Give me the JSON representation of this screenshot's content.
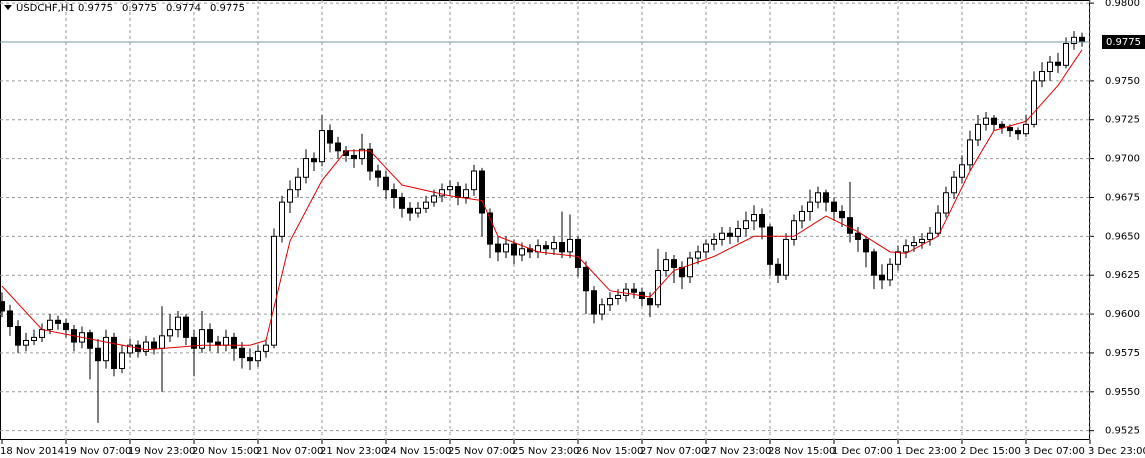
{
  "chart_data": {
    "type": "candlestick",
    "symbol": "USDCHF,H1",
    "header_values": [
      "0.9775",
      "0.9775",
      "0.9774",
      "0.9775"
    ],
    "bid": {
      "value": 0.9775,
      "label": "0.9775"
    },
    "up_color": "#ffffff",
    "down_color": "#000000",
    "ma_color": "#e00000",
    "bid_line_color": "#7a98a8",
    "grid": true,
    "xlim": [
      -0.25,
      136
    ],
    "ylim": [
      0.9519,
      0.9802
    ],
    "yticks": [
      {
        "value": 0.98,
        "label": "0.9800"
      },
      {
        "value": 0.975,
        "label": "0.9750"
      },
      {
        "value": 0.9725,
        "label": "0.9725"
      },
      {
        "value": 0.97,
        "label": "0.9700"
      },
      {
        "value": 0.9675,
        "label": "0.9675"
      },
      {
        "value": 0.965,
        "label": "0.9650"
      },
      {
        "value": 0.9625,
        "label": "0.9625"
      },
      {
        "value": 0.96,
        "label": "0.9600"
      },
      {
        "value": 0.9575,
        "label": "0.9575"
      },
      {
        "value": 0.955,
        "label": "0.9550"
      },
      {
        "value": 0.9525,
        "label": "0.9525"
      }
    ],
    "xticks": [
      {
        "value": 0,
        "label": "18 Nov 2014"
      },
      {
        "value": 8,
        "label": "19 Nov 07:00"
      },
      {
        "value": 16,
        "label": "19 Nov 23:00"
      },
      {
        "value": 24,
        "label": "20 Nov 15:00"
      },
      {
        "value": 32,
        "label": "21 Nov 07:00"
      },
      {
        "value": 40,
        "label": "21 Nov 23:00"
      },
      {
        "value": 48,
        "label": "24 Nov 15:00"
      },
      {
        "value": 56,
        "label": "25 Nov 07:00"
      },
      {
        "value": 64,
        "label": "25 Nov 23:00"
      },
      {
        "value": 72,
        "label": "26 Nov 15:00"
      },
      {
        "value": 80,
        "label": "27 Nov 07:00"
      },
      {
        "value": 88,
        "label": "27 Nov 23:00"
      },
      {
        "value": 96,
        "label": "28 Nov 15:00"
      },
      {
        "value": 104,
        "label": "1 Dec 07:00"
      },
      {
        "value": 112,
        "label": "1 Dec 23:00"
      },
      {
        "value": 120,
        "label": "2 Dec 15:00"
      },
      {
        "value": 128,
        "label": "3 Dec 07:00"
      },
      {
        "value": 136,
        "label": "3 Dec 23:00"
      }
    ],
    "candles": [
      [
        0.9608,
        0.9614,
        0.9598,
        0.9602
      ],
      [
        0.9602,
        0.9606,
        0.9586,
        0.9592
      ],
      [
        0.9592,
        0.9596,
        0.9575,
        0.958
      ],
      [
        0.958,
        0.9588,
        0.9576,
        0.9583
      ],
      [
        0.9583,
        0.959,
        0.958,
        0.9585
      ],
      [
        0.9585,
        0.9594,
        0.9582,
        0.959
      ],
      [
        0.959,
        0.96,
        0.9587,
        0.9596
      ],
      [
        0.9596,
        0.9599,
        0.959,
        0.9594
      ],
      [
        0.9594,
        0.9597,
        0.9585,
        0.959
      ],
      [
        0.959,
        0.9593,
        0.9576,
        0.9582
      ],
      [
        0.9582,
        0.9592,
        0.9578,
        0.9588
      ],
      [
        0.9588,
        0.959,
        0.9558,
        0.9578
      ],
      [
        0.9578,
        0.9584,
        0.953,
        0.957
      ],
      [
        0.957,
        0.959,
        0.9565,
        0.9585
      ],
      [
        0.9585,
        0.9588,
        0.956,
        0.9565
      ],
      [
        0.9565,
        0.958,
        0.9562,
        0.9575
      ],
      [
        0.9575,
        0.9584,
        0.9572,
        0.958
      ],
      [
        0.958,
        0.9583,
        0.9572,
        0.9576
      ],
      [
        0.9576,
        0.9586,
        0.9573,
        0.9582
      ],
      [
        0.9582,
        0.9585,
        0.9574,
        0.9578
      ],
      [
        0.9578,
        0.9605,
        0.955,
        0.9586
      ],
      [
        0.9586,
        0.96,
        0.9582,
        0.959
      ],
      [
        0.959,
        0.9602,
        0.9585,
        0.9598
      ],
      [
        0.9598,
        0.96,
        0.958,
        0.9585
      ],
      [
        0.9585,
        0.959,
        0.956,
        0.9578
      ],
      [
        0.9578,
        0.9602,
        0.9575,
        0.959
      ],
      [
        0.959,
        0.9594,
        0.9576,
        0.9582
      ],
      [
        0.9582,
        0.9586,
        0.9575,
        0.958
      ],
      [
        0.958,
        0.959,
        0.9576,
        0.9585
      ],
      [
        0.9585,
        0.9588,
        0.957,
        0.9578
      ],
      [
        0.9578,
        0.9582,
        0.9565,
        0.9572
      ],
      [
        0.9572,
        0.9578,
        0.9564,
        0.957
      ],
      [
        0.957,
        0.958,
        0.9566,
        0.9576
      ],
      [
        0.9576,
        0.9584,
        0.9572,
        0.958
      ],
      [
        0.958,
        0.9655,
        0.9578,
        0.965
      ],
      [
        0.965,
        0.9676,
        0.9646,
        0.9672
      ],
      [
        0.9672,
        0.9686,
        0.9665,
        0.968
      ],
      [
        0.968,
        0.9694,
        0.9675,
        0.9688
      ],
      [
        0.9688,
        0.9706,
        0.9684,
        0.97
      ],
      [
        0.97,
        0.9704,
        0.9692,
        0.9698
      ],
      [
        0.9698,
        0.9728,
        0.9695,
        0.9718
      ],
      [
        0.9718,
        0.9722,
        0.9704,
        0.971
      ],
      [
        0.971,
        0.9714,
        0.97,
        0.9705
      ],
      [
        0.9705,
        0.9708,
        0.9698,
        0.9702
      ],
      [
        0.9702,
        0.9706,
        0.9694,
        0.97
      ],
      [
        0.97,
        0.9716,
        0.9696,
        0.9706
      ],
      [
        0.9706,
        0.971,
        0.9686,
        0.9692
      ],
      [
        0.9692,
        0.9696,
        0.9682,
        0.9688
      ],
      [
        0.9688,
        0.9692,
        0.9674,
        0.968
      ],
      [
        0.968,
        0.9684,
        0.9668,
        0.9675
      ],
      [
        0.9675,
        0.9678,
        0.9662,
        0.9668
      ],
      [
        0.9668,
        0.9672,
        0.966,
        0.9665
      ],
      [
        0.9665,
        0.9672,
        0.9662,
        0.9668
      ],
      [
        0.9668,
        0.9676,
        0.9665,
        0.9672
      ],
      [
        0.9672,
        0.968,
        0.9669,
        0.9676
      ],
      [
        0.9676,
        0.9684,
        0.9672,
        0.968
      ],
      [
        0.968,
        0.9686,
        0.9676,
        0.9682
      ],
      [
        0.9682,
        0.9685,
        0.967,
        0.9675
      ],
      [
        0.9675,
        0.9684,
        0.9671,
        0.968
      ],
      [
        0.968,
        0.9696,
        0.9676,
        0.9692
      ],
      [
        0.9692,
        0.9694,
        0.965,
        0.9665
      ],
      [
        0.9665,
        0.9668,
        0.9636,
        0.9645
      ],
      [
        0.9645,
        0.965,
        0.9634,
        0.964
      ],
      [
        0.964,
        0.965,
        0.9636,
        0.9645
      ],
      [
        0.9645,
        0.9648,
        0.9632,
        0.9638
      ],
      [
        0.9638,
        0.9646,
        0.9634,
        0.9642
      ],
      [
        0.9642,
        0.9645,
        0.9636,
        0.964
      ],
      [
        0.964,
        0.9648,
        0.9636,
        0.9644
      ],
      [
        0.9644,
        0.9647,
        0.9638,
        0.9642
      ],
      [
        0.9642,
        0.965,
        0.9638,
        0.9646
      ],
      [
        0.9646,
        0.9666,
        0.9636,
        0.964
      ],
      [
        0.964,
        0.9664,
        0.9636,
        0.9648
      ],
      [
        0.9648,
        0.965,
        0.9624,
        0.963
      ],
      [
        0.963,
        0.9634,
        0.96,
        0.9615
      ],
      [
        0.9615,
        0.9618,
        0.9594,
        0.96
      ],
      [
        0.96,
        0.961,
        0.9596,
        0.9606
      ],
      [
        0.9606,
        0.9614,
        0.9602,
        0.961
      ],
      [
        0.961,
        0.9616,
        0.9606,
        0.9612
      ],
      [
        0.9612,
        0.962,
        0.9608,
        0.9616
      ],
      [
        0.9616,
        0.962,
        0.961,
        0.9614
      ],
      [
        0.9614,
        0.9617,
        0.9605,
        0.961
      ],
      [
        0.961,
        0.9614,
        0.9598,
        0.9606
      ],
      [
        0.9606,
        0.9642,
        0.9604,
        0.9628
      ],
      [
        0.9628,
        0.964,
        0.9624,
        0.9635
      ],
      [
        0.9635,
        0.9638,
        0.962,
        0.963
      ],
      [
        0.963,
        0.9634,
        0.9616,
        0.9624
      ],
      [
        0.9624,
        0.964,
        0.962,
        0.9636
      ],
      [
        0.9636,
        0.9644,
        0.9632,
        0.964
      ],
      [
        0.964,
        0.9648,
        0.9636,
        0.9645
      ],
      [
        0.9645,
        0.9652,
        0.9641,
        0.9648
      ],
      [
        0.9648,
        0.9656,
        0.9644,
        0.9652
      ],
      [
        0.9652,
        0.9656,
        0.9645,
        0.965
      ],
      [
        0.965,
        0.966,
        0.9646,
        0.9655
      ],
      [
        0.9655,
        0.9666,
        0.965,
        0.966
      ],
      [
        0.966,
        0.967,
        0.9654,
        0.9664
      ],
      [
        0.9664,
        0.9668,
        0.9648,
        0.9656
      ],
      [
        0.9656,
        0.9658,
        0.9625,
        0.9632
      ],
      [
        0.9632,
        0.9636,
        0.962,
        0.9625
      ],
      [
        0.9625,
        0.9652,
        0.9622,
        0.9648
      ],
      [
        0.9648,
        0.9664,
        0.9644,
        0.966
      ],
      [
        0.966,
        0.967,
        0.9655,
        0.9666
      ],
      [
        0.9666,
        0.968,
        0.966,
        0.9672
      ],
      [
        0.9672,
        0.9682,
        0.9668,
        0.9678
      ],
      [
        0.9678,
        0.968,
        0.9666,
        0.9672
      ],
      [
        0.9672,
        0.9675,
        0.966,
        0.9666
      ],
      [
        0.9666,
        0.967,
        0.9656,
        0.9662
      ],
      [
        0.9662,
        0.9685,
        0.9646,
        0.9652
      ],
      [
        0.9652,
        0.9656,
        0.964,
        0.9648
      ],
      [
        0.9648,
        0.965,
        0.963,
        0.964
      ],
      [
        0.964,
        0.9642,
        0.9616,
        0.9625
      ],
      [
        0.9625,
        0.9632,
        0.9616,
        0.9622
      ],
      [
        0.9622,
        0.9636,
        0.9618,
        0.9632
      ],
      [
        0.9632,
        0.9644,
        0.9628,
        0.964
      ],
      [
        0.964,
        0.9648,
        0.9636,
        0.9644
      ],
      [
        0.9644,
        0.965,
        0.964,
        0.9646
      ],
      [
        0.9646,
        0.9652,
        0.9642,
        0.9648
      ],
      [
        0.9648,
        0.9656,
        0.9644,
        0.9652
      ],
      [
        0.9652,
        0.967,
        0.965,
        0.9665
      ],
      [
        0.9665,
        0.9682,
        0.9662,
        0.9678
      ],
      [
        0.9678,
        0.9692,
        0.9674,
        0.9688
      ],
      [
        0.9688,
        0.9702,
        0.9684,
        0.9696
      ],
      [
        0.9696,
        0.9718,
        0.9692,
        0.9712
      ],
      [
        0.9712,
        0.9728,
        0.9708,
        0.9722
      ],
      [
        0.9722,
        0.973,
        0.9718,
        0.9726
      ],
      [
        0.9726,
        0.9728,
        0.9718,
        0.9722
      ],
      [
        0.9722,
        0.9724,
        0.9716,
        0.972
      ],
      [
        0.972,
        0.9722,
        0.9714,
        0.9718
      ],
      [
        0.9718,
        0.972,
        0.9712,
        0.9716
      ],
      [
        0.9716,
        0.9728,
        0.9714,
        0.9722
      ],
      [
        0.9722,
        0.9756,
        0.972,
        0.975
      ],
      [
        0.975,
        0.9762,
        0.9746,
        0.9756
      ],
      [
        0.9756,
        0.9766,
        0.975,
        0.9762
      ],
      [
        0.9762,
        0.9768,
        0.9755,
        0.976
      ],
      [
        0.976,
        0.9778,
        0.9758,
        0.9774
      ],
      [
        0.9774,
        0.9782,
        0.977,
        0.9778
      ],
      [
        0.9778,
        0.9781,
        0.9772,
        0.9775
      ]
    ],
    "ma": {
      "x": [
        0,
        5,
        12,
        18,
        25,
        31,
        33,
        36,
        40,
        43,
        46,
        50,
        56,
        60,
        62,
        67,
        72,
        76,
        81,
        84,
        89,
        94,
        99,
        103,
        107,
        111,
        113,
        117,
        121,
        124,
        128,
        132,
        135
      ],
      "values": [
        0.9618,
        0.959,
        0.9583,
        0.9577,
        0.958,
        0.958,
        0.9583,
        0.9647,
        0.9686,
        0.9705,
        0.9705,
        0.9683,
        0.9676,
        0.9673,
        0.965,
        0.964,
        0.9637,
        0.9615,
        0.9611,
        0.9628,
        0.9637,
        0.965,
        0.965,
        0.9663,
        0.9653,
        0.964,
        0.9639,
        0.965,
        0.9692,
        0.9718,
        0.9724,
        0.9747,
        0.977
      ]
    }
  }
}
